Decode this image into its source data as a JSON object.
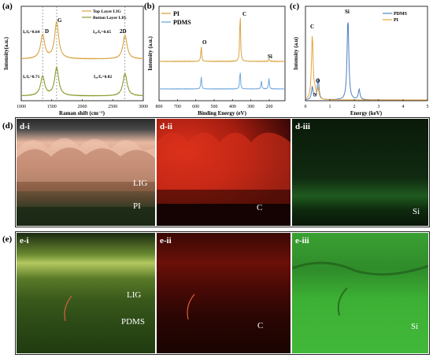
{
  "panels": {
    "a": {
      "letter": "(a)",
      "chart_data": {
        "type": "line",
        "xlabel": "Raman shift (cm⁻¹)",
        "ylabel": "Intensity(a.u.)",
        "xlim": [
          1000,
          3000
        ],
        "xticks": [
          "1000",
          "1500",
          "2000",
          "2500",
          "3000"
        ],
        "legend_position": "top-right",
        "series": [
          {
            "name": "Top Layer LIG",
            "color": "#d9a441",
            "peaks": [
              [
                1350,
                0.55
              ],
              [
                1580,
                0.85
              ],
              [
                2700,
                0.55
              ]
            ]
          },
          {
            "name": "Botton Layer LIG",
            "color": "#8c9a2e",
            "peaks": [
              [
                1350,
                0.45
              ],
              [
                1580,
                0.65
              ],
              [
                2700,
                0.52
              ]
            ]
          }
        ],
        "annotations": {
          "top_d_g": "Iₑ/Iₑ=0.64",
          "top_2d_g": "I₂ₑ/Iₑ=0.65",
          "bottom_d_g": "Iₑ/Iₑ=0.71",
          "bottom_2d_g": "I₂ₑ/Iₑ=0.82",
          "peak_d": "D",
          "peak_g": "G",
          "peak_2d": "2D"
        }
      }
    },
    "b": {
      "letter": "(b)",
      "chart_data": {
        "type": "line",
        "xlabel": "Binding Energy (eV)",
        "ylabel": "Intensity (a.u.)",
        "xlim": [
          800,
          0
        ],
        "xticks": [
          "800",
          "700",
          "600",
          "500",
          "400",
          "300",
          "200"
        ],
        "legend_position": "top-left",
        "series": [
          {
            "name": "PI",
            "color": "#d9a441",
            "peaks": [
              [
                532,
                0.3
              ],
              [
                285,
                0.95
              ],
              [
                102,
                0.05
              ]
            ]
          },
          {
            "name": "PDMS",
            "color": "#6fa8dc",
            "peaks": [
              [
                532,
                0.25
              ],
              [
                285,
                0.35
              ],
              [
                150,
                0.15
              ],
              [
                102,
                0.2
              ]
            ]
          }
        ],
        "annotations": {
          "o": "O",
          "c": "C",
          "si": "Si"
        }
      }
    },
    "c": {
      "letter": "(c)",
      "chart_data": {
        "type": "line",
        "xlabel": "Energy (keV)",
        "ylabel": "Intensity (a.u)",
        "xlim": [
          0,
          5
        ],
        "xticks": [
          "0",
          "1",
          "2",
          "3",
          "4",
          "5"
        ],
        "legend_position": "top-right",
        "series": [
          {
            "name": "PDMS",
            "color": "#4f81bd",
            "peaks": [
              [
                0.28,
                0.15
              ],
              [
                0.52,
                0.25
              ],
              [
                1.74,
                0.95
              ],
              [
                2.2,
                0.12
              ]
            ]
          },
          {
            "name": "PI",
            "color": "#e8a33d",
            "peaks": [
              [
                0.28,
                0.75
              ],
              [
                0.39,
                0.08
              ],
              [
                0.52,
                0.12
              ]
            ]
          }
        ],
        "annotations": {
          "c": "C",
          "n": "N",
          "o": "O",
          "si": "Si"
        }
      }
    },
    "d": {
      "letter": "(d)",
      "images": [
        {
          "label": "d-i",
          "tags": [
            "LIG",
            "PI"
          ]
        },
        {
          "label": "d-ii",
          "tags": [
            "C"
          ]
        },
        {
          "label": "d-iii",
          "tags": [
            "Si"
          ]
        }
      ]
    },
    "e": {
      "letter": "(e)",
      "images": [
        {
          "label": "e-i",
          "tags": [
            "LIG",
            "PDMS"
          ]
        },
        {
          "label": "e-ii",
          "tags": [
            "C"
          ]
        },
        {
          "label": "e-iii",
          "tags": [
            "Si"
          ]
        }
      ]
    }
  }
}
